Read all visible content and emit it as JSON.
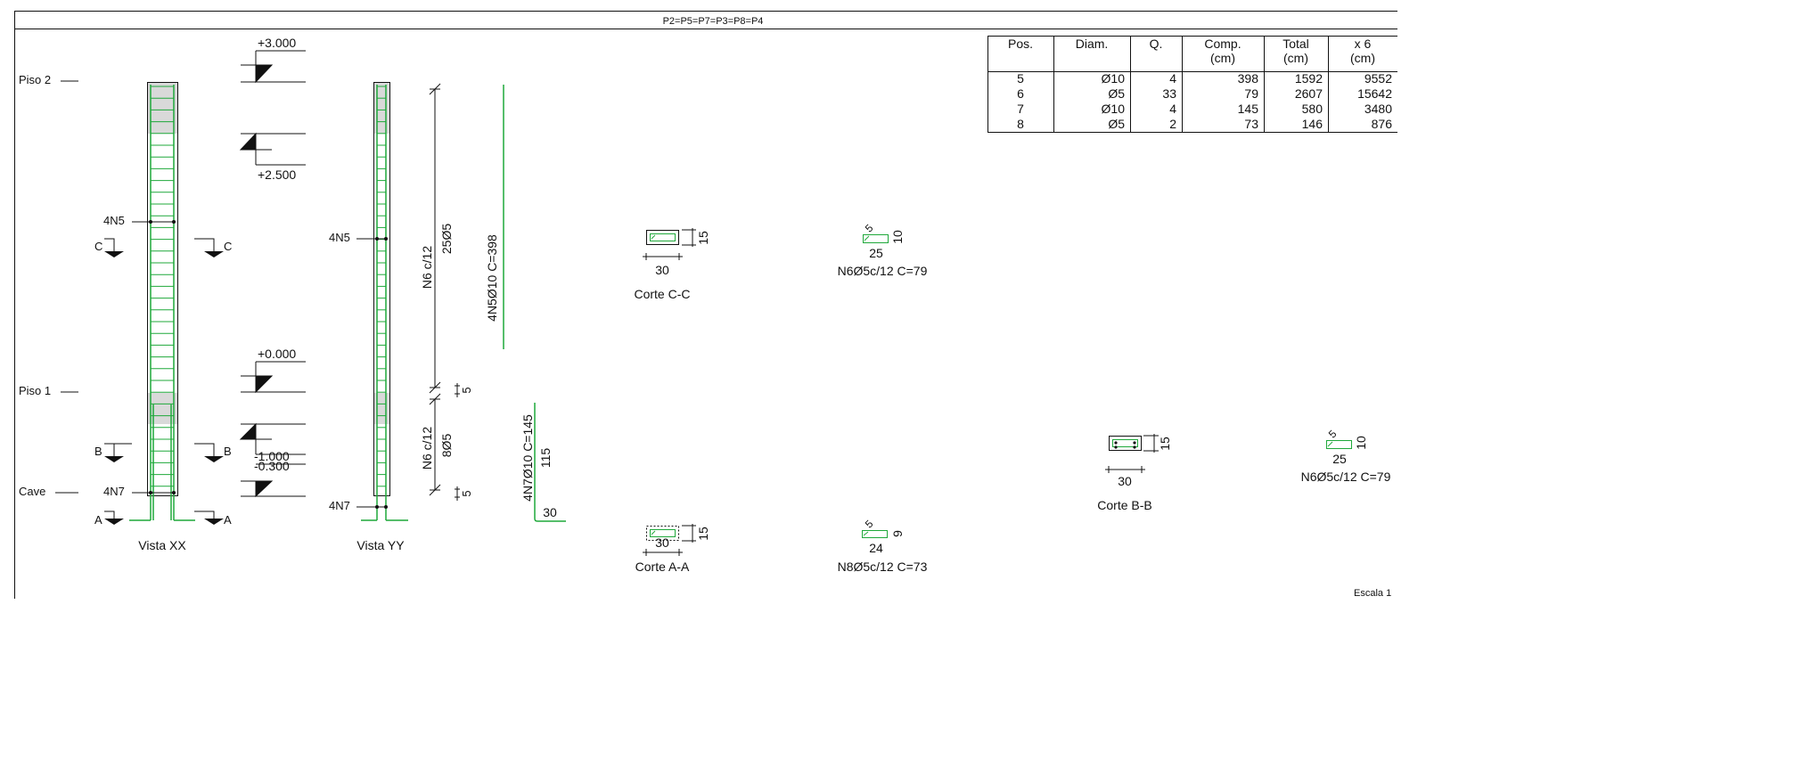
{
  "title": "P2=P5=P7=P3=P8=P4",
  "scale_label": "Escala 1",
  "levels": {
    "top": "+3.000",
    "upper_dim": "+2.500",
    "zero": "+0.000",
    "minus1": "-1.000",
    "minus0300": "-0.300"
  },
  "floor_labels": {
    "piso2": "Piso 2",
    "piso1": "Piso 1",
    "cave": "Cave"
  },
  "views": {
    "xx": {
      "caption": "Vista XX",
      "n5": "4N5",
      "n7": "4N7"
    },
    "yy": {
      "caption": "Vista YY",
      "n5": "4N5",
      "n7": "4N7"
    }
  },
  "section_marks": {
    "c": "C",
    "b": "B",
    "a": "A"
  },
  "stirrup_dims": {
    "upper_spacing": "N6 c/12",
    "upper_count": "25Ø5",
    "lower_spacing": "N6 c/12",
    "lower_count": "8Ø5",
    "gap_top": "5",
    "gap_bottom": "5"
  },
  "bars": {
    "n5": {
      "label": "4N5Ø10 C=398"
    },
    "n7": {
      "label": "4N7Ø10 C=145",
      "vertical": "115",
      "hook": "30"
    }
  },
  "cortes": {
    "cc": {
      "label": "Corte C-C",
      "width": "30",
      "height": "15"
    },
    "aa": {
      "label": "Corte A-A",
      "width": "30",
      "height": "15"
    },
    "bb": {
      "label": "Corte B-B",
      "width": "30",
      "height": "15"
    }
  },
  "stirrups": {
    "s1": {
      "hook": "5",
      "height": "10",
      "width": "25",
      "label": "N6Ø5c/12 C=79"
    },
    "s2": {
      "hook": "5",
      "height": "9",
      "width": "24",
      "label": "N8Ø5c/12 C=73"
    },
    "s3": {
      "hook": "5",
      "height": "10",
      "width": "25",
      "label": "N6Ø5c/12 C=79"
    }
  },
  "table": {
    "headers": [
      {
        "l1": "Pos.",
        "l2": ""
      },
      {
        "l1": "Diam.",
        "l2": ""
      },
      {
        "l1": "Q.",
        "l2": ""
      },
      {
        "l1": "Comp.",
        "l2": "(cm)"
      },
      {
        "l1": "Total",
        "l2": "(cm)"
      },
      {
        "l1": "x 6",
        "l2": "(cm)"
      }
    ],
    "rows": [
      [
        "5",
        "Ø10",
        "4",
        "398",
        "1592",
        "9552"
      ],
      [
        "6",
        "Ø5",
        "33",
        "79",
        "2607",
        "15642"
      ],
      [
        "7",
        "Ø10",
        "4",
        "145",
        "580",
        "3480"
      ],
      [
        "8",
        "Ø5",
        "2",
        "73",
        "146",
        "876"
      ]
    ]
  },
  "colors": {
    "line": "#111111",
    "rebar": "#1fa83a",
    "hatch": "#d9d9d9"
  }
}
